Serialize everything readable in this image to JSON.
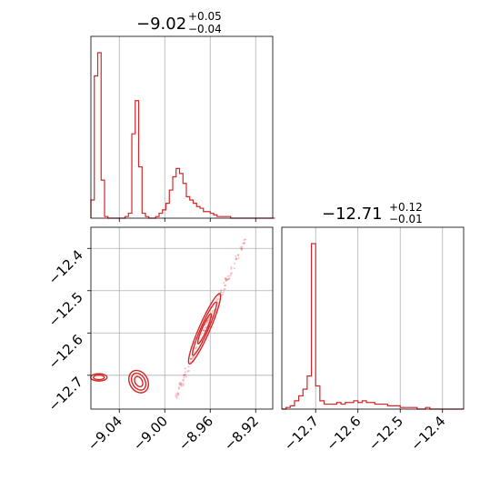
{
  "chart_data": [
    {
      "type": "histogram",
      "panel": "top-left",
      "title": {
        "main": "−9.02",
        "plus": "+0.05",
        "minus": "−0.04"
      },
      "xlim": [
        -9.065,
        -8.905
      ],
      "color": "#d62728",
      "grid": true,
      "x_grid": [
        -9.04,
        -9.0,
        -8.96,
        -8.92
      ],
      "bins_x": [
        -9.065,
        -9.062,
        -9.059,
        -9.056,
        -9.053,
        -9.05,
        -9.047,
        -9.044,
        -9.041,
        -9.038,
        -9.035,
        -9.032,
        -9.029,
        -9.026,
        -9.023,
        -9.02,
        -9.017,
        -9.014,
        -9.011,
        -9.008,
        -9.005,
        -9.002,
        -8.999,
        -8.996,
        -8.993,
        -8.99,
        -8.987,
        -8.984,
        -8.981,
        -8.978,
        -8.975,
        -8.972,
        -8.969,
        -8.966,
        -8.963,
        -8.96,
        -8.957,
        -8.954,
        -8.951,
        -8.948,
        -8.945,
        -8.942,
        -8.939,
        -8.936,
        -8.933,
        -8.93,
        -8.927,
        -8.924,
        -8.921,
        -8.918,
        -8.915,
        -8.912,
        -8.909,
        -8.906
      ],
      "counts": [
        0.11,
        0.86,
        1.0,
        0.23,
        0.01,
        0.0,
        0.0,
        0.0,
        0.0,
        0.0,
        0.01,
        0.03,
        0.51,
        0.71,
        0.31,
        0.03,
        0.01,
        0.0,
        0.0,
        0.01,
        0.03,
        0.05,
        0.09,
        0.17,
        0.25,
        0.3,
        0.27,
        0.21,
        0.13,
        0.11,
        0.09,
        0.07,
        0.06,
        0.04,
        0.04,
        0.03,
        0.02,
        0.01,
        0.01,
        0.01,
        0.01,
        0.0,
        0.0,
        0.0,
        0.0,
        0.0,
        0.0,
        0.0,
        0.0,
        0.0,
        0.0,
        0.0,
        0.0,
        0.0
      ]
    },
    {
      "type": "histogram",
      "panel": "bottom-right",
      "title": {
        "main": "−12.71",
        "plus": "+0.12",
        "minus": "−0.01"
      },
      "xlim": [
        -12.78,
        -12.35
      ],
      "xticks": [
        -12.7,
        -12.6,
        -12.5,
        -12.4
      ],
      "xtick_labels": [
        "−12.7",
        "−12.6",
        "−12.5",
        "−12.4"
      ],
      "color": "#d62728",
      "grid": true,
      "bins_x": [
        -12.78,
        -12.77,
        -12.76,
        -12.75,
        -12.74,
        -12.73,
        -12.72,
        -12.71,
        -12.7,
        -12.69,
        -12.68,
        -12.67,
        -12.66,
        -12.65,
        -12.64,
        -12.63,
        -12.62,
        -12.61,
        -12.6,
        -12.59,
        -12.58,
        -12.57,
        -12.56,
        -12.55,
        -12.54,
        -12.53,
        -12.52,
        -12.51,
        -12.5,
        -12.49,
        -12.48,
        -12.47,
        -12.46,
        -12.45,
        -12.44,
        -12.43,
        -12.42,
        -12.41,
        -12.4,
        -12.39,
        -12.38,
        -12.37,
        -12.36
      ],
      "counts": [
        0.0,
        0.01,
        0.02,
        0.05,
        0.08,
        0.12,
        0.2,
        1.0,
        0.14,
        0.05,
        0.03,
        0.03,
        0.03,
        0.04,
        0.03,
        0.04,
        0.04,
        0.05,
        0.04,
        0.05,
        0.04,
        0.04,
        0.03,
        0.03,
        0.03,
        0.02,
        0.02,
        0.02,
        0.01,
        0.01,
        0.01,
        0.01,
        0.0,
        0.0,
        0.01,
        0.0,
        0.0,
        0.0,
        0.0,
        0.0,
        0.0,
        0.0,
        0.0
      ]
    },
    {
      "type": "scatter",
      "panel": "bottom-left",
      "style": "2d-density-contours",
      "xlim": [
        -9.065,
        -8.905
      ],
      "ylim": [
        -12.78,
        -12.35
      ],
      "xticks": [
        -9.04,
        -9.0,
        -8.96,
        -8.92
      ],
      "xtick_labels": [
        "−9.04",
        "−9.00",
        "−8.96",
        "−8.92"
      ],
      "yticks": [
        -12.4,
        -12.5,
        -12.6,
        -12.7
      ],
      "ytick_labels": [
        "−12.4",
        "−12.5",
        "−12.6",
        "−12.7"
      ],
      "grid": true,
      "color": "#d62728",
      "clusters": [
        {
          "x": -9.058,
          "y": -12.705
        },
        {
          "x": -9.023,
          "y": -12.715
        },
        {
          "x": -8.965,
          "y": -12.59
        }
      ],
      "ridge": {
        "x0": -8.99,
        "y0": -12.75,
        "x1": -8.93,
        "y1": -12.38
      }
    }
  ]
}
